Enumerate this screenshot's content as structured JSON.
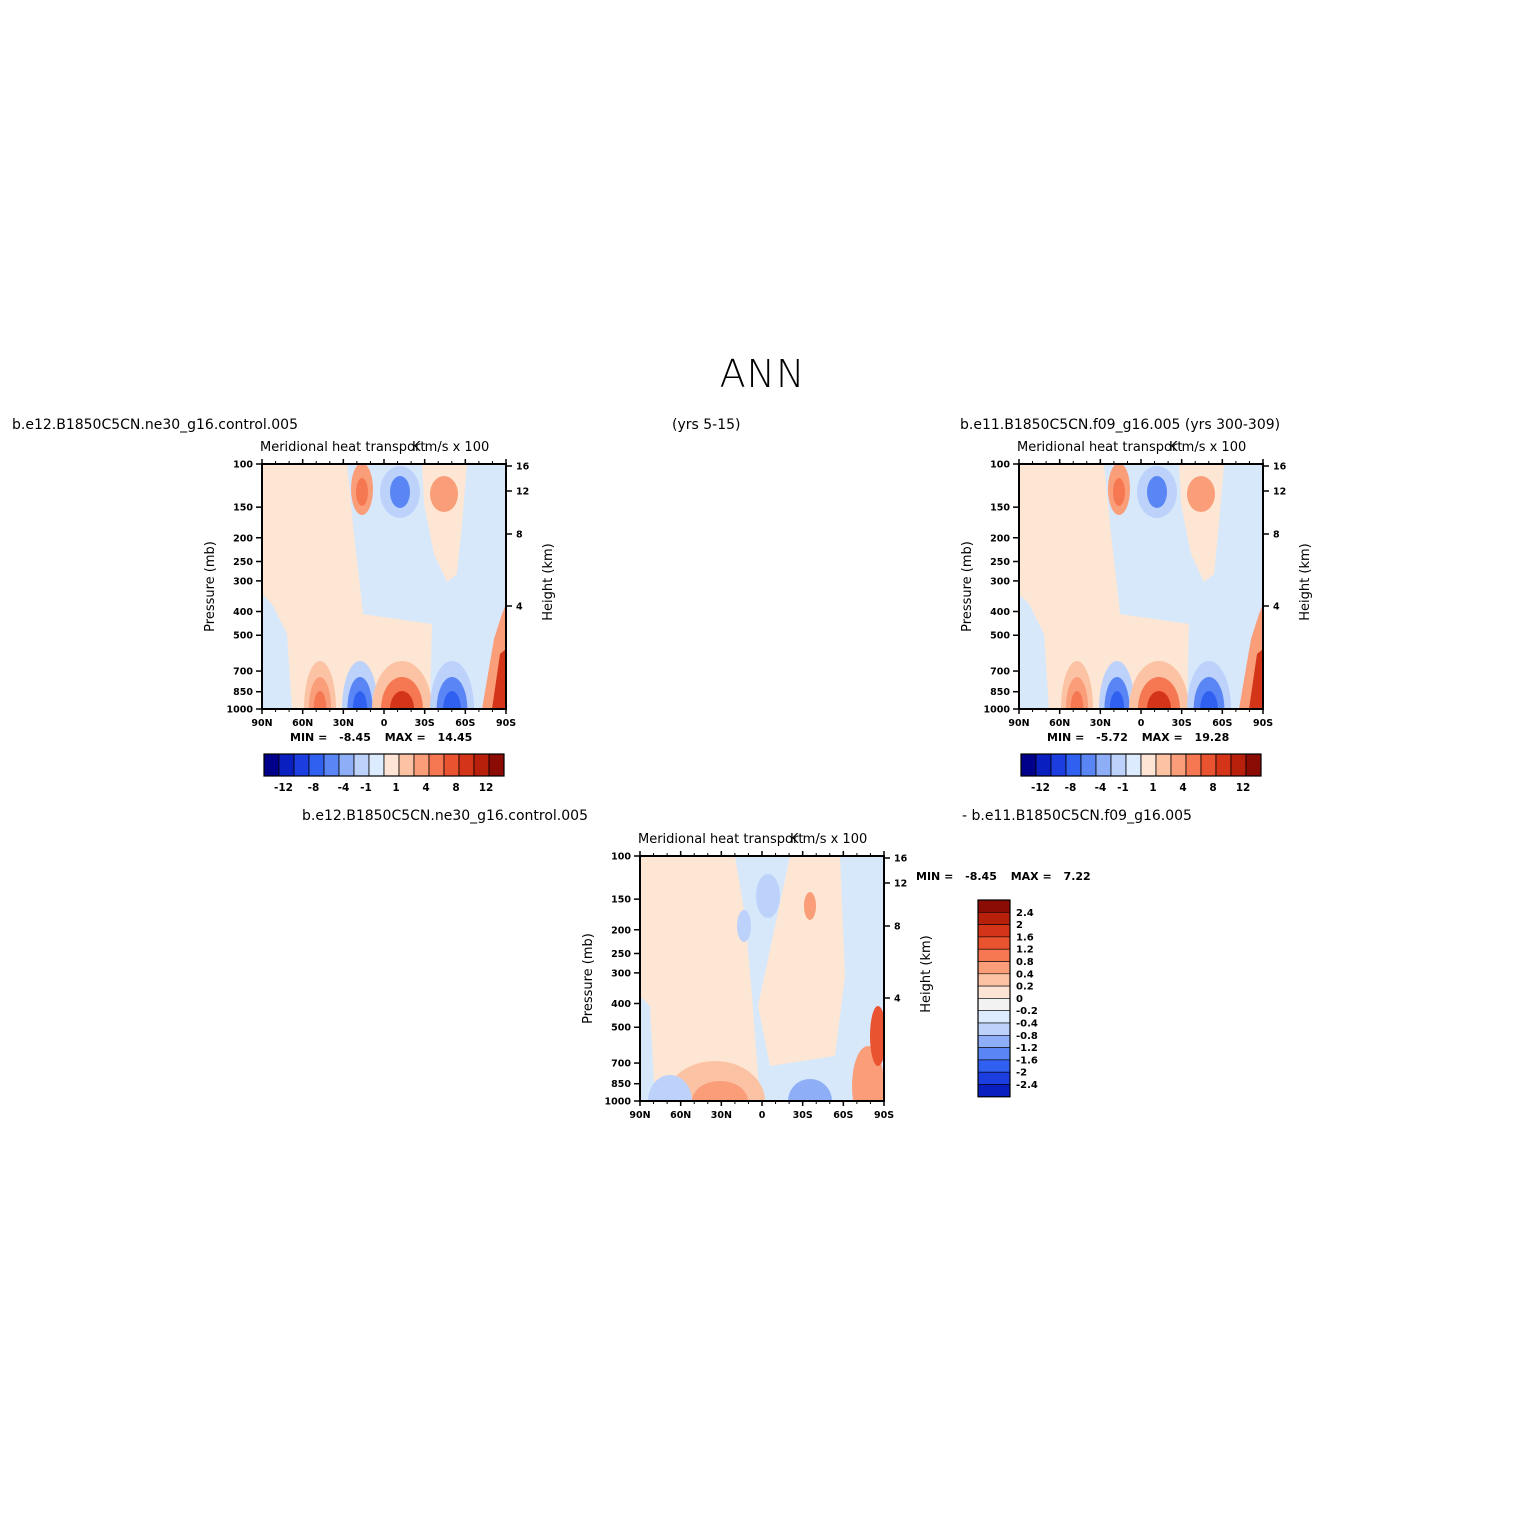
{
  "title": "ANN",
  "case_labels": {
    "top_left": "b.e12.B1850C5CN.ne30_g16.control.005",
    "top_mid": "(yrs 5-15)",
    "top_right": "b.e11.B1850C5CN.f09_g16.005 (yrs 300-309)",
    "bottom_left": "b.e12.B1850C5CN.ne30_g16.control.005",
    "bottom_right": "- b.e11.B1850C5CN.f09_g16.005"
  },
  "colors": {
    "levels13": [
      "#00008a",
      "#0a1fc0",
      "#1c3ee0",
      "#3060f0",
      "#5a85f5",
      "#8eaff8",
      "#bcd2fb",
      "#dcebfd",
      "#fde4d4",
      "#fcc2a4",
      "#fa9e7a",
      "#f57852",
      "#ea5330",
      "#d43518",
      "#b8200b",
      "#8b0c04"
    ],
    "neg_light": "#d7e8fb",
    "pos_light": "#fde6d3"
  },
  "chart_data": [
    {
      "type": "contour",
      "title": "Meridional heat transport",
      "units": "K m/s x 100",
      "ylabel": "Pressure (mb)",
      "ylabel_right": "Height (km)",
      "y_ticks": [
        "100",
        "150",
        "200",
        "250",
        "300",
        "400",
        "500",
        "700",
        "850",
        "1000"
      ],
      "y_right_ticks": [
        "16",
        "12",
        "8",
        "4"
      ],
      "x_ticks": [
        "90N",
        "60N",
        "30N",
        "0",
        "30S",
        "60S",
        "90S"
      ],
      "min_label": "MIN =",
      "min": "-8.45",
      "max_label": "MAX =",
      "max": "14.45",
      "colorbar_labels": [
        "-12",
        "-8",
        "-4",
        "-1",
        "1",
        "4",
        "8",
        "12"
      ]
    },
    {
      "type": "contour",
      "title": "Meridional heat transport",
      "units": "K m/s x 100",
      "ylabel": "Pressure (mb)",
      "ylabel_right": "Height (km)",
      "y_ticks": [
        "100",
        "150",
        "200",
        "250",
        "300",
        "400",
        "500",
        "700",
        "850",
        "1000"
      ],
      "y_right_ticks": [
        "16",
        "12",
        "8",
        "4"
      ],
      "x_ticks": [
        "90N",
        "60N",
        "30N",
        "0",
        "30S",
        "60S",
        "90S"
      ],
      "min_label": "MIN =",
      "min": "-5.72",
      "max_label": "MAX =",
      "max": "19.28",
      "colorbar_labels": [
        "-12",
        "-8",
        "-4",
        "-1",
        "1",
        "4",
        "8",
        "12"
      ]
    },
    {
      "type": "contour",
      "title": "Meridional heat transport",
      "units": "K m/s x 100",
      "ylabel": "Pressure (mb)",
      "ylabel_right": "Height (km)",
      "y_ticks": [
        "100",
        "150",
        "200",
        "250",
        "300",
        "400",
        "500",
        "700",
        "850",
        "1000"
      ],
      "y_right_ticks": [
        "16",
        "12",
        "8",
        "4"
      ],
      "x_ticks": [
        "90N",
        "60N",
        "30N",
        "0",
        "30S",
        "60S",
        "90S"
      ],
      "min_label": "MIN =",
      "min": "-8.45",
      "max_label": "MAX =",
      "max": "7.22",
      "colorbar_labels": [
        "2.4",
        "2",
        "1.6",
        "1.2",
        "0.8",
        "0.4",
        "0.2",
        "0",
        "-0.2",
        "-0.4",
        "-0.8",
        "-1.2",
        "-1.6",
        "-2",
        "-2.4"
      ]
    }
  ]
}
